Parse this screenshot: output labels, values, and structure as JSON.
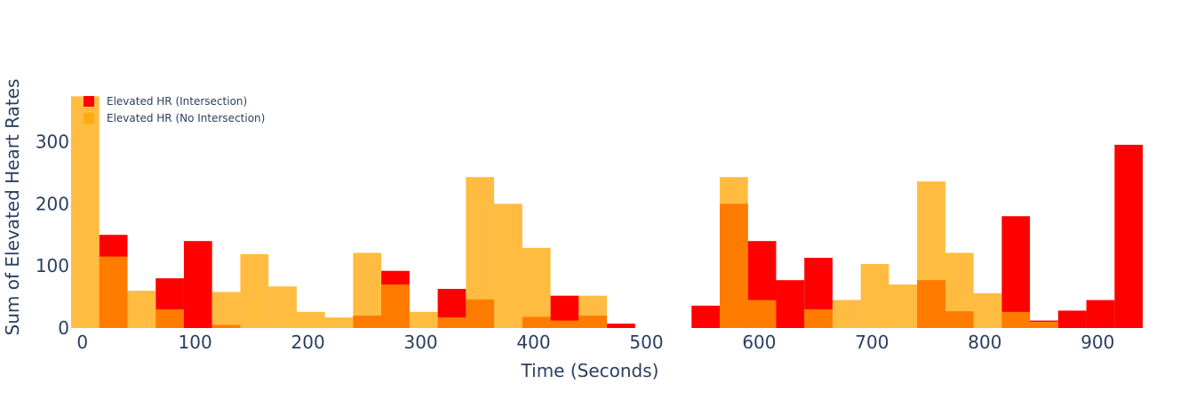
{
  "chart_data": {
    "type": "bar",
    "barmode": "overlay",
    "bin_width": 25,
    "title": "",
    "xlabel": "Time (Seconds)",
    "ylabel": "Sum of Elevated Heart Rates",
    "xlim": [
      -10,
      910
    ],
    "ylim": [
      0,
      385
    ],
    "xticks": [
      0,
      100,
      200,
      300,
      400,
      500,
      600,
      700,
      800,
      900
    ],
    "yticks": [
      0,
      100,
      200,
      300
    ],
    "grid": false,
    "legend_position": "top-left",
    "series": [
      {
        "name": "Elevated HR (Intersection)",
        "color": "#ff0000",
        "opacity": 1.0,
        "x": [
          25,
          75,
          100,
          125,
          250,
          275,
          325,
          350,
          400,
          425,
          450,
          475,
          550,
          575,
          600,
          625,
          650,
          750,
          775,
          825,
          850,
          875,
          900,
          925
        ],
        "values": [
          150,
          80,
          140,
          5,
          20,
          92,
          63,
          46,
          18,
          52,
          20,
          7,
          36,
          200,
          140,
          77,
          113,
          77,
          27,
          180,
          12,
          28,
          45,
          295
        ]
      },
      {
        "name": "Elevated HR (No Intersection)",
        "color": "#ffa500",
        "opacity": 0.75,
        "x": [
          0,
          25,
          50,
          75,
          125,
          150,
          175,
          200,
          225,
          250,
          275,
          300,
          325,
          350,
          375,
          400,
          425,
          450,
          575,
          600,
          650,
          675,
          700,
          725,
          750,
          775,
          800,
          825,
          850
        ],
        "values": [
          373,
          115,
          60,
          30,
          58,
          119,
          67,
          26,
          17,
          121,
          70,
          26,
          17,
          243,
          200,
          129,
          12,
          52,
          243,
          45,
          30,
          45,
          103,
          70,
          236,
          121,
          56,
          26,
          10
        ]
      }
    ]
  }
}
